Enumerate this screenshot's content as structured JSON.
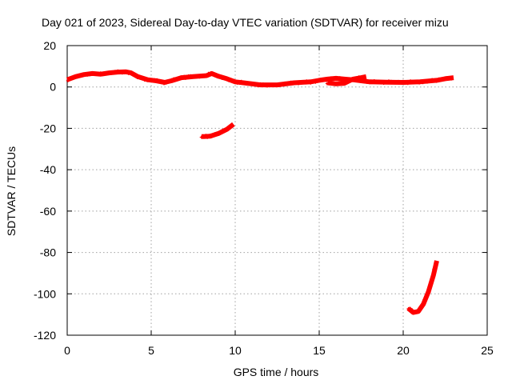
{
  "chart_data": {
    "type": "line",
    "title": "Day 021 of 2023, Sidereal Day-to-day VTEC variation (SDTVAR) for receiver mizu",
    "xlabel": "GPS time / hours",
    "ylabel": "SDTVAR / TECUs",
    "xlim": [
      0,
      25
    ],
    "ylim": [
      -120,
      20
    ],
    "xticks": [
      0,
      5,
      10,
      15,
      20,
      25
    ],
    "yticks": [
      20,
      0,
      -20,
      -40,
      -60,
      -80,
      -100,
      -120
    ],
    "grid": true,
    "legend": "none",
    "color": "#ff0000",
    "series": [
      {
        "name": "main",
        "points": [
          [
            0,
            3.5
          ],
          [
            0.5,
            5
          ],
          [
            1,
            6
          ],
          [
            1.5,
            6.5
          ],
          [
            2,
            6.2
          ],
          [
            2.5,
            6.8
          ],
          [
            3,
            7.2
          ],
          [
            3.5,
            7.3
          ],
          [
            3.8,
            6.8
          ],
          [
            4.2,
            5
          ],
          [
            4.8,
            3.5
          ],
          [
            5.3,
            3
          ],
          [
            5.8,
            2.2
          ],
          [
            6.2,
            3
          ],
          [
            6.8,
            4.5
          ],
          [
            7.5,
            5
          ],
          [
            8.3,
            5.5
          ],
          [
            8.6,
            6.5
          ],
          [
            9,
            5.2
          ],
          [
            9.5,
            4
          ],
          [
            10,
            2.5
          ],
          [
            10.5,
            2
          ],
          [
            11.5,
            1
          ],
          [
            12.5,
            1
          ],
          [
            13.5,
            2
          ],
          [
            14.5,
            2.5
          ],
          [
            15,
            3.2
          ],
          [
            15.5,
            3.8
          ],
          [
            16,
            4.2
          ],
          [
            16.5,
            3.8
          ],
          [
            17,
            3.5
          ],
          [
            17.5,
            3
          ],
          [
            18,
            2.5
          ],
          [
            19,
            2.3
          ],
          [
            20,
            2.2
          ],
          [
            21,
            2.5
          ],
          [
            22,
            3.2
          ],
          [
            22.5,
            4
          ],
          [
            23,
            4.5
          ]
        ]
      },
      {
        "name": "segment-2",
        "points": [
          [
            15.5,
            2
          ],
          [
            16,
            1.5
          ],
          [
            16.5,
            1.8
          ],
          [
            17,
            3.8
          ],
          [
            17.5,
            4.5
          ],
          [
            17.8,
            5
          ]
        ]
      },
      {
        "name": "segment-3",
        "points": [
          [
            8,
            -24
          ],
          [
            8.5,
            -23.8
          ],
          [
            9,
            -22.5
          ],
          [
            9.5,
            -20.5
          ],
          [
            9.9,
            -18
          ]
        ]
      },
      {
        "name": "segment-4",
        "points": [
          [
            20.3,
            -107
          ],
          [
            20.6,
            -109
          ],
          [
            20.9,
            -108.5
          ],
          [
            21.2,
            -105
          ],
          [
            21.5,
            -99
          ],
          [
            21.8,
            -91
          ],
          [
            22,
            -84
          ]
        ]
      }
    ]
  }
}
